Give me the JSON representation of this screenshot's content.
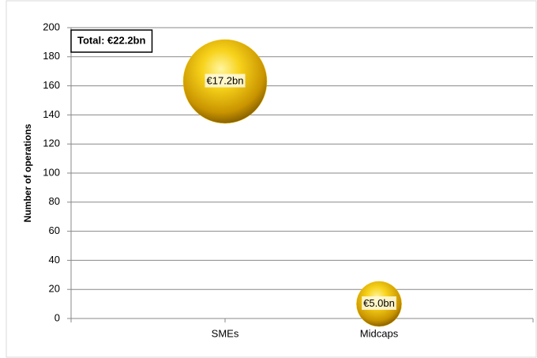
{
  "chart_data": {
    "type": "bubble",
    "annotation": "Total: €22.2bn",
    "y_label": "Number of operations",
    "categories": [
      "SMEs",
      "Midcaps"
    ],
    "values": [
      163,
      10
    ],
    "sizes": [
      17.2,
      5.0
    ],
    "value_labels": [
      "€17.2bn",
      "€5.0bn"
    ],
    "color": "#f2c200",
    "ylim": [
      0,
      200
    ],
    "yticks": [
      0,
      20,
      40,
      60,
      80,
      100,
      120,
      140,
      160,
      180,
      200
    ],
    "grid": true
  }
}
